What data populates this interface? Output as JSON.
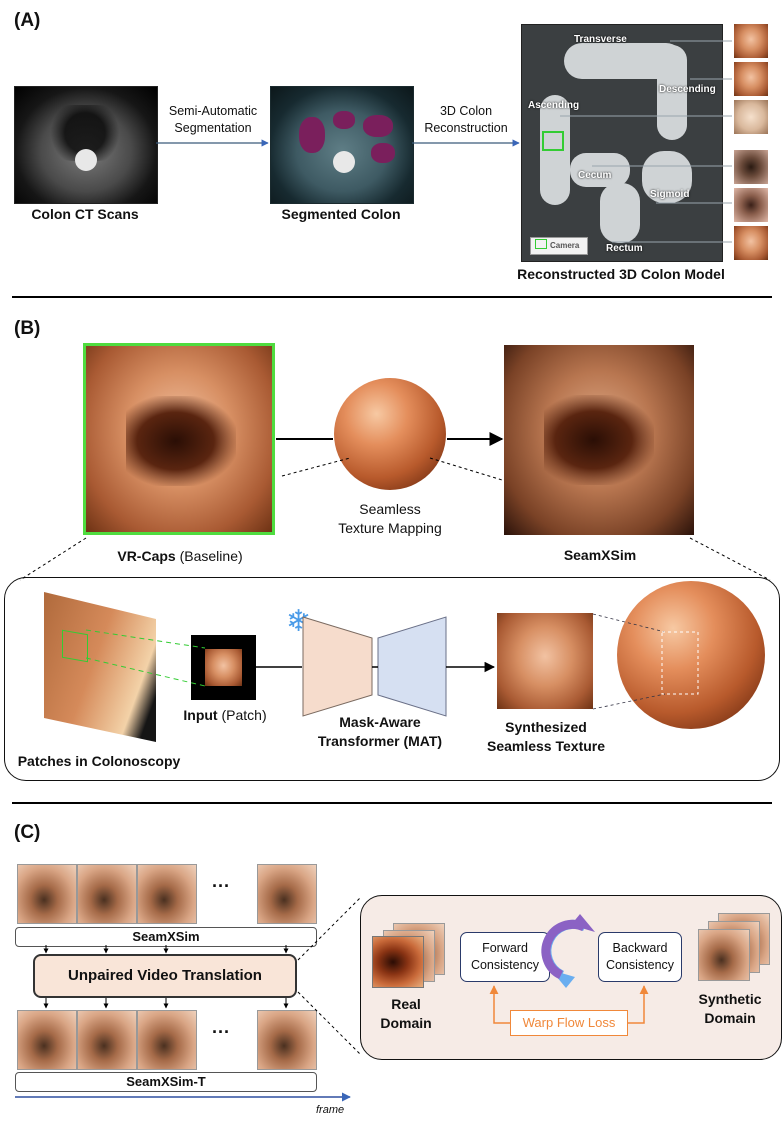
{
  "panel_a": {
    "label": "(A)",
    "ct_caption": "Colon CT Scans",
    "seg_caption": "Segmented Colon",
    "model_caption": "Reconstructed 3D Colon Model",
    "step1_line1": "Semi-Automatic",
    "step1_line2": "Segmentation",
    "step2_line1": "3D Colon",
    "step2_line2": "Reconstruction",
    "regions": {
      "transverse": "Transverse",
      "descending": "Descending",
      "ascending": "Ascending",
      "cecum": "Cecum",
      "sigmoid": "Sigmoid",
      "rectum": "Rectum"
    },
    "camera_legend": "Camera",
    "colors": {
      "segmentation": "#7a1f5c",
      "camera": "#33cc33"
    }
  },
  "panel_b": {
    "label": "(B)",
    "baseline_bold": "VR-Caps",
    "baseline_rest": " (Baseline)",
    "seamless_line1": "Seamless",
    "seamless_line2": "Texture Mapping",
    "result_caption": "SeamXSim",
    "patches_caption": "Patches in Colonoscopy",
    "input_bold": "Input",
    "input_rest": " (Patch)",
    "mat_line1": "Mask-Aware",
    "mat_line2": "Transformer (MAT)",
    "synth_line1": "Synthesized",
    "synth_line2": "Seamless Texture",
    "snowflake": "❄",
    "colors": {
      "baseline_border": "#4fdc3f",
      "encoder": "#f6dccc",
      "decoder": "#d6e0f2"
    }
  },
  "panel_c": {
    "label": "(C)",
    "ellipsis_top": "···",
    "ellipsis_bottom": "···",
    "bar_top": "SeamXSim",
    "translation": "Unpaired Video Translation",
    "bar_bottom": "SeamXSim-T",
    "frame_axis": "frame",
    "real_line1": "Real",
    "real_line2": "Domain",
    "forward_line1": "Forward",
    "forward_line2": "Consistency",
    "backward_line1": "Backward",
    "backward_line2": "Consistency",
    "warp": "Warp Flow Loss",
    "synthetic_line1": "Synthetic",
    "synthetic_line2": "Domain",
    "colors": {
      "translation_fill": "#f9e5d8",
      "warp": "#f0883a",
      "arrow_blue": "#6aaef0",
      "arrow_purple": "#8b62c4"
    }
  }
}
